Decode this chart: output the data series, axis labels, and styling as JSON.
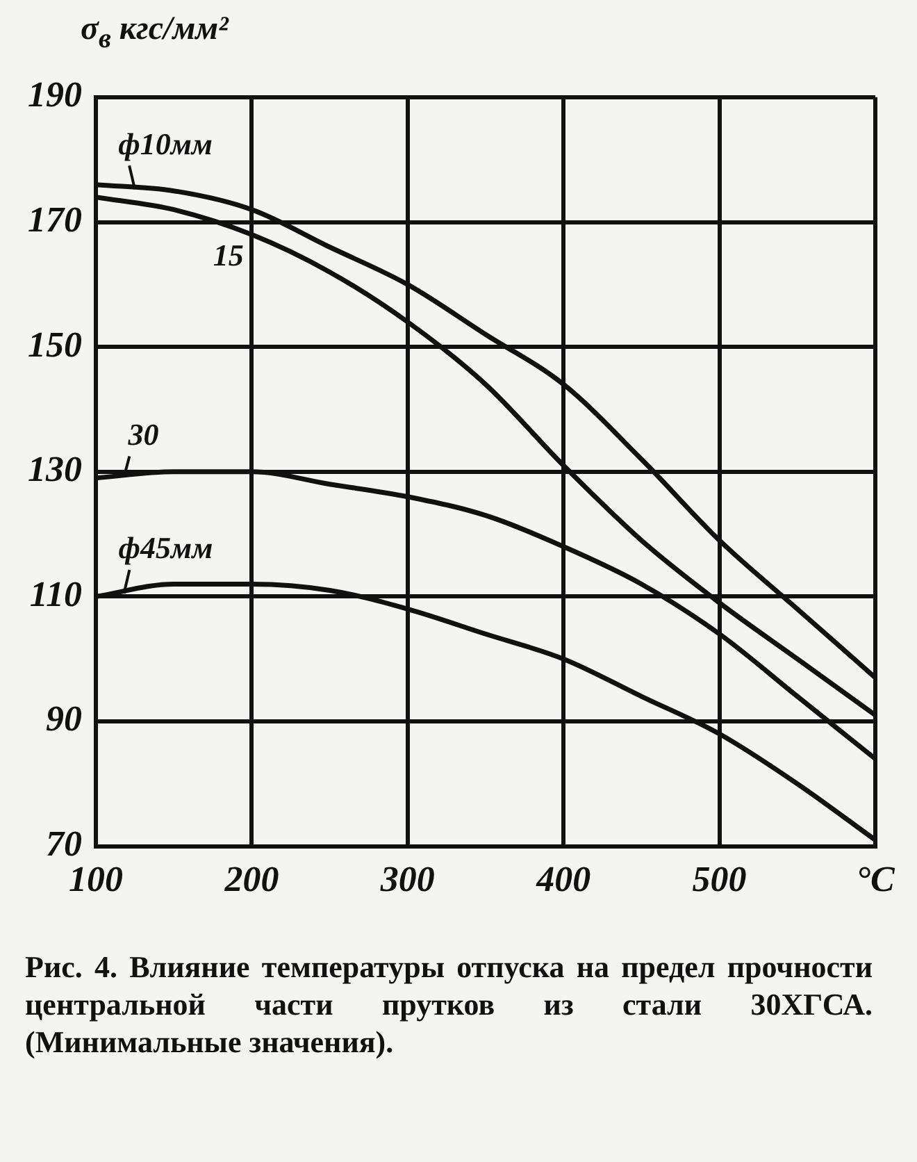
{
  "chart_data": {
    "type": "line",
    "ylabel": "σ$_{в}$ кгс/мм²",
    "annotations": [
      "Рис. 4. Влияние температуры отпуска на предел прочности центральной части прутков из стали 30ХГСА. (Минимальные значения)."
    ],
    "xlim": [
      100,
      600
    ],
    "xticks": [
      100,
      200,
      300,
      400,
      500,
      {
        "value": 600,
        "label": "°C"
      }
    ],
    "ylim": [
      70,
      190
    ],
    "yticks": [
      70,
      90,
      110,
      130,
      150,
      170,
      190
    ],
    "grid": true,
    "legend": false,
    "marker": "none",
    "line_style": "solid",
    "series": [
      {
        "name": "ф10мм",
        "color": "#111111",
        "x": [
          100,
          150,
          200,
          250,
          300,
          350,
          400,
          450,
          500,
          550,
          600
        ],
        "values": [
          176,
          175,
          172,
          166,
          160,
          152,
          144,
          132,
          119,
          108,
          97
        ]
      },
      {
        "name": "15",
        "color": "#111111",
        "x": [
          100,
          150,
          200,
          250,
          300,
          350,
          400,
          450,
          500,
          550,
          600
        ],
        "values": [
          174,
          172,
          168,
          162,
          154,
          144,
          131,
          119,
          109,
          100,
          91
        ]
      },
      {
        "name": "30",
        "color": "#111111",
        "x": [
          100,
          150,
          200,
          250,
          300,
          350,
          400,
          450,
          500,
          550,
          600
        ],
        "values": [
          129,
          130,
          130,
          128,
          126,
          123,
          118,
          112,
          104,
          94,
          84
        ]
      },
      {
        "name": "ф45мм",
        "color": "#111111",
        "x": [
          100,
          150,
          200,
          250,
          300,
          350,
          400,
          450,
          500,
          550,
          600
        ],
        "values": [
          110,
          112,
          112,
          111,
          108,
          104,
          100,
          94,
          88,
          80,
          71
        ]
      }
    ]
  }
}
